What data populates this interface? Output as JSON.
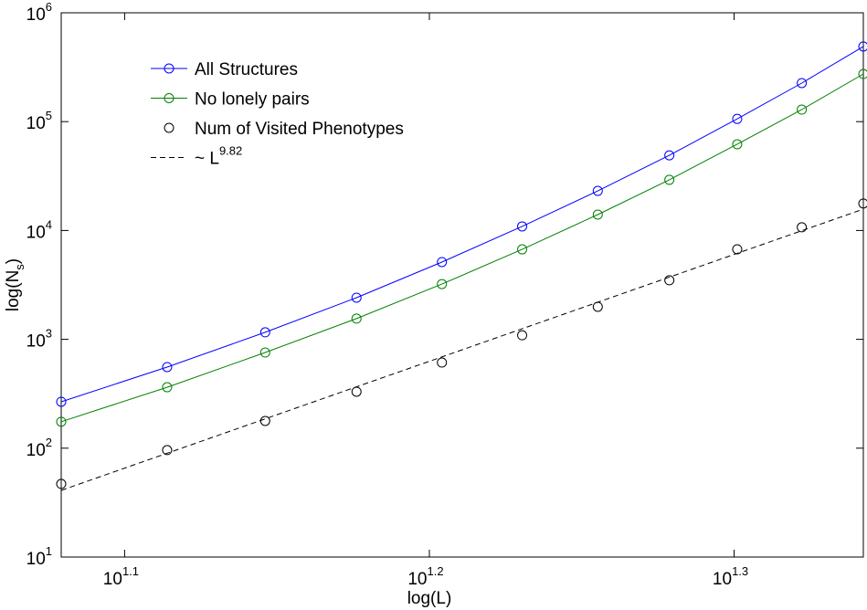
{
  "chart_data": {
    "type": "line",
    "xlabel": "log(L)",
    "ylabel_parts": [
      "log(N",
      "s",
      ")"
    ],
    "x": [
      12,
      13,
      14,
      15,
      16,
      17,
      18,
      19,
      20,
      21,
      22
    ],
    "xlim": [
      12,
      22
    ],
    "ylim": [
      10,
      1000000
    ],
    "xscale": "log",
    "yscale": "log",
    "xticks": [
      {
        "value": 12.589,
        "label": "10",
        "exponent": "1.1"
      },
      {
        "value": 15.849,
        "label": "10",
        "exponent": "1.2"
      },
      {
        "value": 19.953,
        "label": "10",
        "exponent": "1.3"
      }
    ],
    "yticks": [
      {
        "value": 10,
        "label": "10",
        "exponent": "1"
      },
      {
        "value": 100,
        "label": "10",
        "exponent": "2"
      },
      {
        "value": 1000,
        "label": "10",
        "exponent": "3"
      },
      {
        "value": 10000,
        "label": "10",
        "exponent": "4"
      },
      {
        "value": 100000,
        "label": "10",
        "exponent": "5"
      },
      {
        "value": 1000000,
        "label": "10",
        "exponent": "6"
      }
    ],
    "legend": "upper left",
    "series": [
      {
        "name": "All Structures",
        "color": "#0000ff",
        "line": "solid",
        "marker": "circle",
        "values": [
          267,
          556,
          1160,
          2415,
          5130,
          10900,
          23100,
          49000,
          106000,
          226000,
          490000
        ]
      },
      {
        "name": "No lonely pairs",
        "color": "#008000",
        "line": "solid",
        "marker": "circle",
        "values": [
          175,
          363,
          757,
          1550,
          3220,
          6710,
          14000,
          29200,
          62000,
          129000,
          274000
        ]
      },
      {
        "name": "Num of Visited Phenotypes",
        "color": "#000000",
        "line": "none",
        "marker": "circle",
        "values": [
          47,
          96,
          178,
          330,
          612,
          1090,
          1990,
          3490,
          6720,
          10700,
          17700
        ]
      },
      {
        "name": "~ L",
        "superscript": "9.82",
        "color": "#000000",
        "line": "dashed",
        "marker": "none",
        "x": [
          12,
          22
        ],
        "values": [
          41,
          15700
        ]
      }
    ]
  }
}
